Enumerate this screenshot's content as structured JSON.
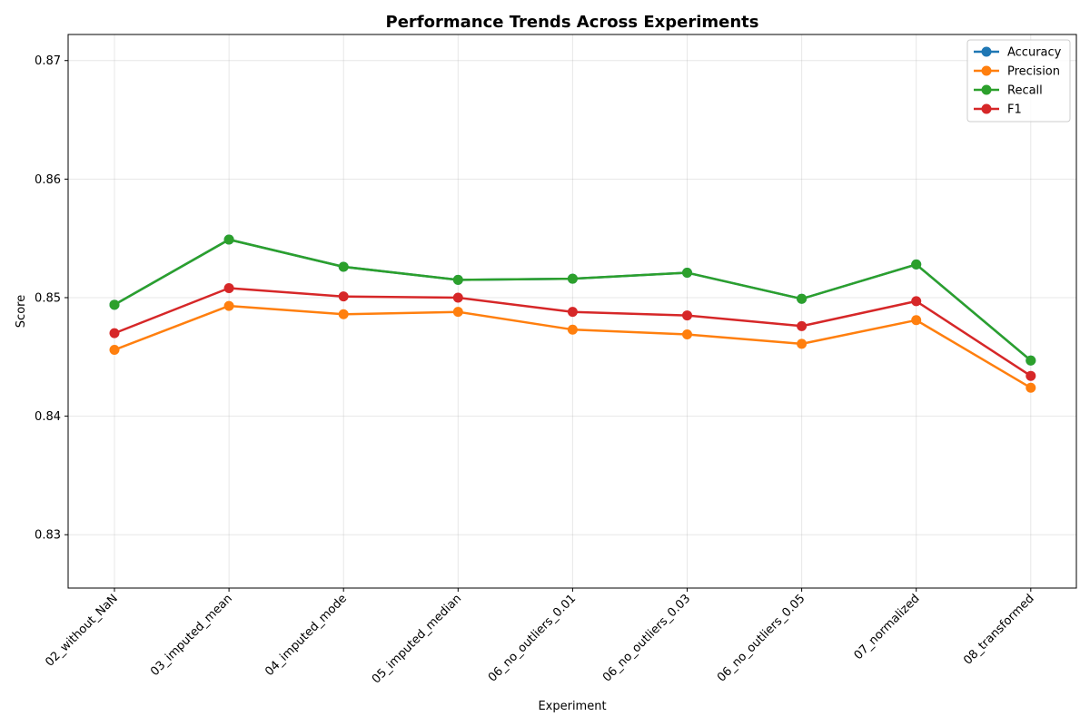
{
  "chart_data": {
    "type": "line",
    "title": "Performance Trends Across Experiments",
    "xlabel": "Experiment",
    "ylabel": "Score",
    "categories": [
      "02_without_NaN",
      "03_imputed_mean",
      "04_imputed_mode",
      "05_imputed_median",
      "06_no_outliers_0.01",
      "06_no_outliers_0.03",
      "06_no_outliers_0.05",
      "07_normalized",
      "08_transformed"
    ],
    "ylim": [
      0.8255,
      0.8722
    ],
    "yticks": [
      0.83,
      0.84,
      0.85,
      0.86,
      0.87
    ],
    "ytick_labels": [
      "0.83",
      "0.84",
      "0.85",
      "0.86",
      "0.87"
    ],
    "grid": true,
    "legend_position": "top-right",
    "series": [
      {
        "name": "Accuracy",
        "color": "#1f77b4",
        "values": [
          0.8494,
          0.8549,
          0.8526,
          0.8515,
          0.8516,
          0.8521,
          0.8499,
          0.8528,
          0.8447
        ]
      },
      {
        "name": "Precision",
        "color": "#ff7f0e",
        "values": [
          0.8456,
          0.8493,
          0.8486,
          0.8488,
          0.8473,
          0.8469,
          0.8461,
          0.8481,
          0.8424
        ]
      },
      {
        "name": "Recall",
        "color": "#2ca02c",
        "values": [
          0.8494,
          0.8549,
          0.8526,
          0.8515,
          0.8516,
          0.8521,
          0.8499,
          0.8528,
          0.8447
        ]
      },
      {
        "name": "F1",
        "color": "#d62728",
        "values": [
          0.847,
          0.8508,
          0.8501,
          0.85,
          0.8488,
          0.8485,
          0.8476,
          0.8497,
          0.8434
        ]
      }
    ]
  }
}
